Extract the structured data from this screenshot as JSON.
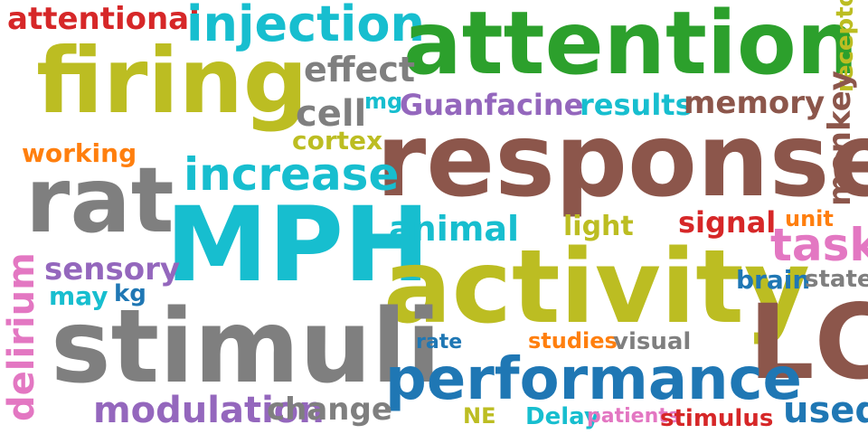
{
  "colors": {
    "red": "#d62728",
    "cyan": "#17becf",
    "green": "#2ca02c",
    "olive": "#bcbd22",
    "gray": "#7f7f7f",
    "brown": "#8c564b",
    "purple": "#9467bd",
    "blue": "#1f77b4",
    "orange": "#ff7f0e",
    "pink": "#e377c2"
  },
  "words": {
    "attentional": "attentional",
    "injection": "injection",
    "attention": "attention",
    "receptor": "receptor",
    "firing": "firing",
    "effect": "effect",
    "cell": "cell",
    "mg": "mg",
    "guanfacine": "Guanfacine",
    "results": "results",
    "memory": "memory",
    "monkey": "monkey",
    "cortex": "cortex",
    "working": "working",
    "response": "response",
    "rat": "rat",
    "increase": "increase",
    "mph": "MPH",
    "animal": "animal",
    "light": "light",
    "signal": "signal",
    "unit": "unit",
    "task": "task",
    "sensory": "sensory",
    "activity": "activity",
    "brain": "brain",
    "state": "state",
    "delirium": "delirium",
    "may": "may",
    "kg": "kg",
    "stimuli": "stimuli",
    "lc": "LC",
    "rate": "rate",
    "studies": "studies",
    "visual": "visual",
    "performance": "performance",
    "modulation": "modulation",
    "change": "change",
    "ne": "NE",
    "delay": "Delay",
    "patients": "patients",
    "stimulus": "stimulus",
    "used": "used"
  }
}
